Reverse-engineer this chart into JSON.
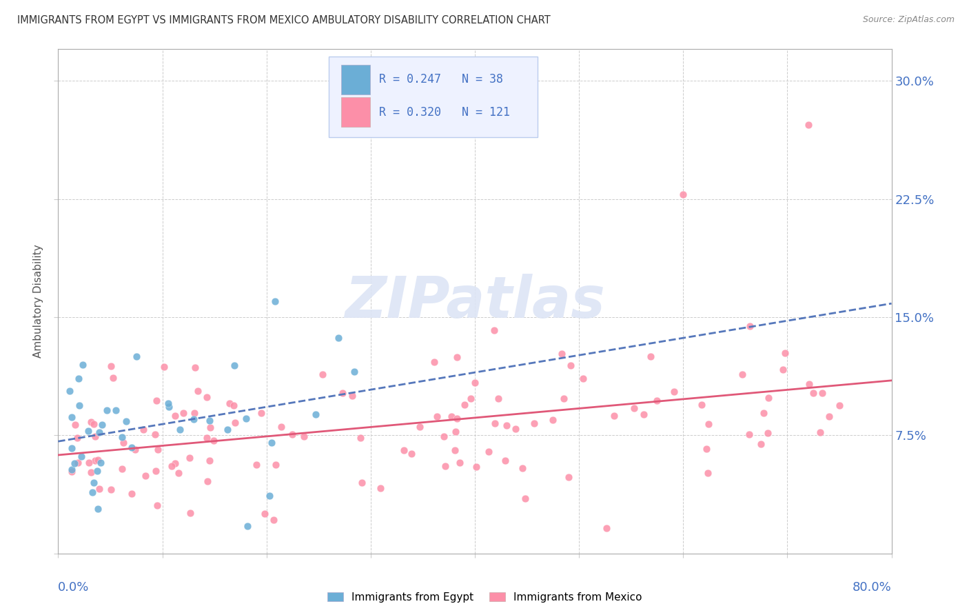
{
  "title": "IMMIGRANTS FROM EGYPT VS IMMIGRANTS FROM MEXICO AMBULATORY DISABILITY CORRELATION CHART",
  "source": "Source: ZipAtlas.com",
  "ylabel": "Ambulatory Disability",
  "yticks": [
    0.0,
    0.075,
    0.15,
    0.225,
    0.3
  ],
  "ytick_labels": [
    "",
    "7.5%",
    "15.0%",
    "22.5%",
    "30.0%"
  ],
  "xlim": [
    0.0,
    0.8
  ],
  "ylim": [
    0.0,
    0.32
  ],
  "egypt_R": 0.247,
  "egypt_N": 38,
  "mexico_R": 0.32,
  "mexico_N": 121,
  "egypt_color": "#6BAED6",
  "mexico_color": "#FC8FA8",
  "egypt_line_color": "#5577BB",
  "mexico_line_color": "#E05878",
  "watermark_text": "ZIPatlas",
  "legend_text_color": "#4472C4",
  "legend_bg": "#EEF2FF",
  "legend_border": "#BBCCEE"
}
